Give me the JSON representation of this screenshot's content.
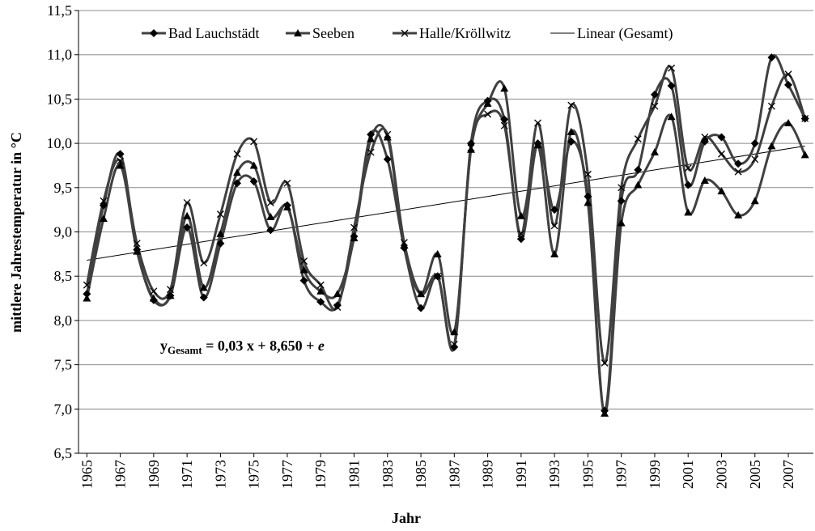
{
  "chart_data": {
    "type": "line",
    "y_label": "mittlere Jahrestemperatur in  °C",
    "x_label": "Jahr",
    "x": [
      1965,
      1966,
      1967,
      1968,
      1969,
      1970,
      1971,
      1972,
      1973,
      1974,
      1975,
      1976,
      1977,
      1978,
      1979,
      1980,
      1981,
      1982,
      1983,
      1984,
      1985,
      1986,
      1987,
      1988,
      1989,
      1990,
      1991,
      1992,
      1993,
      1994,
      1995,
      1996,
      1997,
      1998,
      1999,
      2000,
      2001,
      2002,
      2003,
      2004,
      2005,
      2006,
      2007,
      2008
    ],
    "xlim": [
      1964.5,
      2008.5
    ],
    "xticks": [
      1965,
      1967,
      1969,
      1971,
      1973,
      1975,
      1977,
      1979,
      1981,
      1983,
      1985,
      1987,
      1989,
      1991,
      1993,
      1995,
      1997,
      1999,
      2001,
      2003,
      2005,
      2007
    ],
    "ylim": [
      6.5,
      11.5
    ],
    "yticks": [
      {
        "value": 6.5,
        "label": "6,5"
      },
      {
        "value": 7,
        "label": "7,0"
      },
      {
        "value": 7.5,
        "label": "7,5"
      },
      {
        "value": 8,
        "label": "8,0"
      },
      {
        "value": 8.5,
        "label": "8,5"
      },
      {
        "value": 9,
        "label": "9,0"
      },
      {
        "value": 9.5,
        "label": "9,5"
      },
      {
        "value": 10,
        "label": "10,0"
      },
      {
        "value": 10.5,
        "label": "10,5"
      },
      {
        "value": 11,
        "label": "11,0"
      },
      {
        "value": 11.5,
        "label": "11,5"
      }
    ],
    "grid": true,
    "legend": "top",
    "series": [
      {
        "name": "Bad Lauchstädt",
        "color": "#404040",
        "marker": "diamond",
        "values": [
          8.3,
          9.3,
          9.88,
          8.8,
          8.23,
          8.28,
          9.05,
          8.26,
          8.87,
          9.55,
          9.57,
          9.02,
          9.3,
          8.45,
          8.21,
          8.17,
          8.95,
          10.1,
          9.82,
          8.82,
          8.14,
          8.5,
          7.7,
          10.0,
          10.48,
          10.27,
          8.92,
          10.0,
          9.25,
          10.02,
          9.4,
          6.98,
          9.35,
          9.7,
          10.55,
          10.65,
          9.53,
          10.02,
          10.07,
          9.77,
          10.0,
          10.97,
          10.66,
          10.28
        ]
      },
      {
        "name": "Seeben",
        "color": "#404040",
        "marker": "triangle",
        "values": [
          8.25,
          9.15,
          9.75,
          8.78,
          8.25,
          8.28,
          9.18,
          8.37,
          8.98,
          9.67,
          9.75,
          9.17,
          9.28,
          8.57,
          8.33,
          8.3,
          8.93,
          10.05,
          10.07,
          8.85,
          8.3,
          8.75,
          7.87,
          9.93,
          10.45,
          10.62,
          9.18,
          9.98,
          8.75,
          10.13,
          9.33,
          6.95,
          9.1,
          9.53,
          9.9,
          10.3,
          9.22,
          9.58,
          9.46,
          9.19,
          9.35,
          9.97,
          10.23,
          9.87
        ]
      },
      {
        "name": "Halle/Kröllwitz",
        "color": "#404040",
        "marker": "cross",
        "values": [
          8.4,
          9.35,
          9.8,
          8.87,
          8.33,
          8.35,
          9.33,
          8.65,
          9.2,
          9.88,
          10.02,
          9.33,
          9.55,
          8.67,
          8.4,
          8.15,
          9.05,
          9.9,
          10.1,
          8.88,
          8.3,
          8.5,
          7.73,
          9.95,
          10.33,
          10.2,
          8.98,
          10.23,
          9.07,
          10.43,
          9.65,
          7.52,
          9.5,
          10.05,
          10.42,
          10.85,
          9.72,
          10.07,
          9.88,
          9.68,
          9.82,
          10.42,
          10.78,
          10.28
        ]
      }
    ],
    "trend": {
      "name": "Linear (Gesamt)",
      "color": "#000000",
      "x": [
        1965,
        2008
      ],
      "values": [
        8.68,
        9.97
      ]
    },
    "annotation": {
      "main": "y",
      "sub": "Gesamt",
      "rest": " = 0,03 x + 8,650 + ",
      "italic": "e"
    }
  }
}
